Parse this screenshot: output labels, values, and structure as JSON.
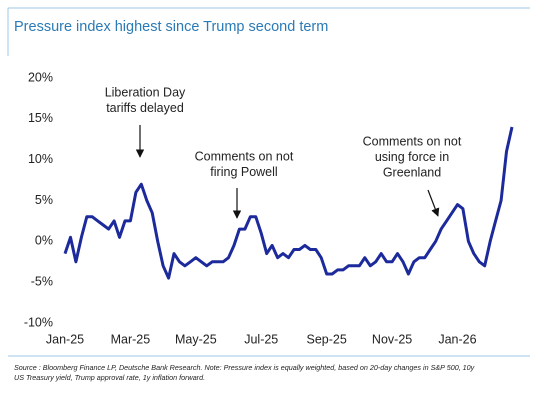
{
  "chart_data": {
    "type": "line",
    "title": "Pressure index highest since Trump second term",
    "categories": [
      "Jan-25",
      null,
      null,
      null,
      null,
      null,
      null,
      null,
      null,
      null,
      null,
      null,
      "Mar-25",
      null,
      null,
      null,
      null,
      null,
      null,
      null,
      null,
      null,
      null,
      null,
      "May-25",
      null,
      null,
      null,
      null,
      null,
      null,
      null,
      null,
      null,
      null,
      null,
      "Jul-25",
      null,
      null,
      null,
      null,
      null,
      null,
      null,
      null,
      null,
      null,
      null,
      "Sep-25",
      null,
      null,
      null,
      null,
      null,
      null,
      null,
      null,
      null,
      null,
      null,
      "Nov-25",
      null,
      null,
      null,
      null,
      null,
      null,
      null,
      null,
      null,
      null,
      null,
      "Jan-26",
      null,
      null,
      null,
      null,
      null,
      null,
      null,
      null,
      null,
      null
    ],
    "series": [
      {
        "name": "Pressure index",
        "color": "#1c2a9c",
        "values": [
          -1.5,
          0.5,
          -2.5,
          0.5,
          3,
          3,
          2.5,
          2,
          1.5,
          2.5,
          0.5,
          2.5,
          2.5,
          6,
          7,
          5,
          3.5,
          0,
          -3,
          -4.5,
          -1.5,
          -2.5,
          -3,
          -2.5,
          -2,
          -2.5,
          -3,
          -2.5,
          -2.5,
          -2.5,
          -2,
          -0.5,
          1.5,
          1.5,
          3,
          3,
          1,
          -1.5,
          -0.5,
          -2,
          -1.5,
          -2,
          -1,
          -1,
          -0.5,
          -1,
          -1,
          -2,
          -4,
          -4,
          -3.5,
          -3.5,
          -3,
          -3,
          -3,
          -2,
          -3,
          -2.5,
          -1.5,
          -2.5,
          -2.5,
          -1.5,
          -2.5,
          -4,
          -2.5,
          -2,
          -2,
          -1,
          0,
          1.5,
          2.5,
          3.5,
          4.5,
          4,
          0,
          -1.5,
          -2.5,
          -3,
          0,
          2.5,
          5,
          11,
          14
        ]
      }
    ],
    "ylim": [
      -10,
      20
    ],
    "yticks": [
      {
        "value": -10,
        "label": "-10%"
      },
      {
        "value": -5,
        "label": "-5%"
      },
      {
        "value": 0,
        "label": "0%"
      },
      {
        "value": 5,
        "label": "5%"
      },
      {
        "value": 10,
        "label": "10%"
      },
      {
        "value": 15,
        "label": "15%"
      },
      {
        "value": 20,
        "label": "20%"
      }
    ],
    "grid": false,
    "annotations": [
      {
        "lines": [
          "Liberation Day",
          "tariffs delayed"
        ]
      },
      {
        "lines": [
          "Comments on not",
          "firing Powell"
        ]
      },
      {
        "lines": [
          "Comments on not",
          "using force in",
          "Greenland"
        ]
      }
    ],
    "source": [
      "Source : Bloomberg Finance LP, Deutsche Bank Research. Note: Pressure index is equally weighted, based on 20-day changes in S&P 500, 10y",
      "US Treasury yield, Trump approval rate, 1y inflation forward."
    ]
  }
}
